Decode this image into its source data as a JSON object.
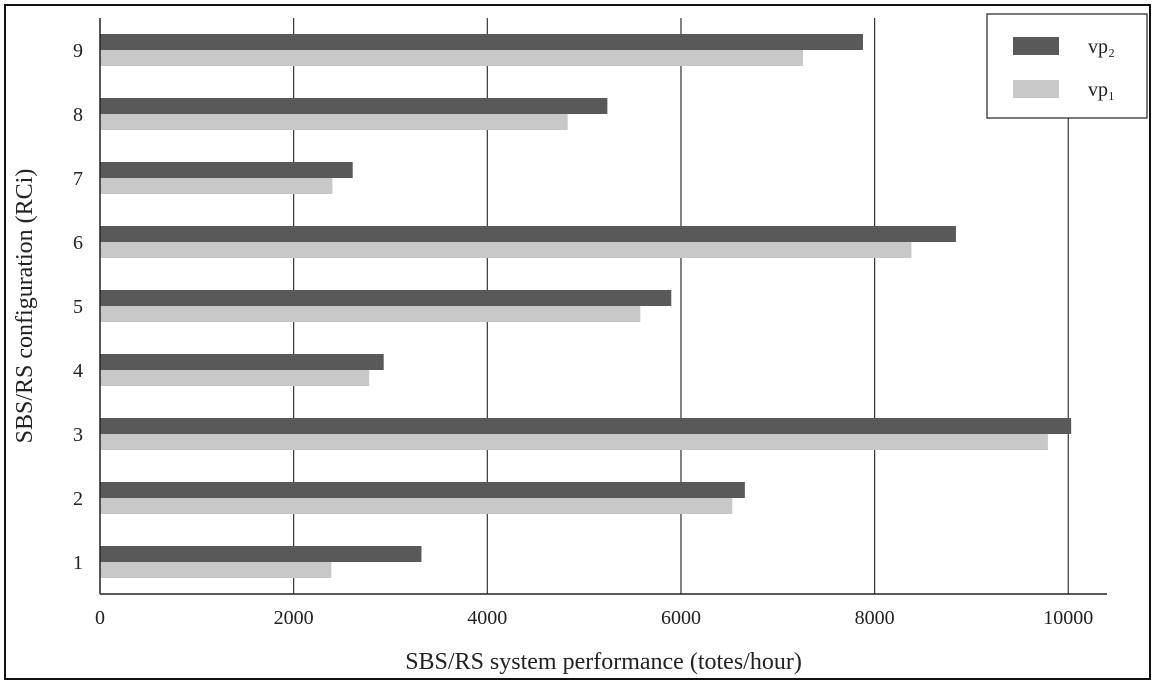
{
  "chart_data": {
    "type": "bar",
    "orientation": "horizontal",
    "categories": [
      "1",
      "2",
      "3",
      "4",
      "5",
      "6",
      "7",
      "8",
      "9"
    ],
    "series": [
      {
        "name": "vp₂",
        "color": "#595959",
        "values": [
          3320,
          6660,
          10030,
          2930,
          5900,
          8840,
          2610,
          5240,
          7880
        ]
      },
      {
        "name": "vp₁",
        "color": "#c8c8c8",
        "values": [
          2390,
          6530,
          9790,
          2780,
          5580,
          8380,
          2400,
          4830,
          7260
        ]
      }
    ],
    "xlabel": "SBS/RS system performance (totes/hour)",
    "ylabel": "SBS/RS configuration (RCi)",
    "xlim": [
      0,
      10400
    ],
    "xticks": [
      0,
      2000,
      4000,
      6000,
      8000,
      10000
    ],
    "grid": "vertical lines",
    "legend_position": "top-right"
  }
}
